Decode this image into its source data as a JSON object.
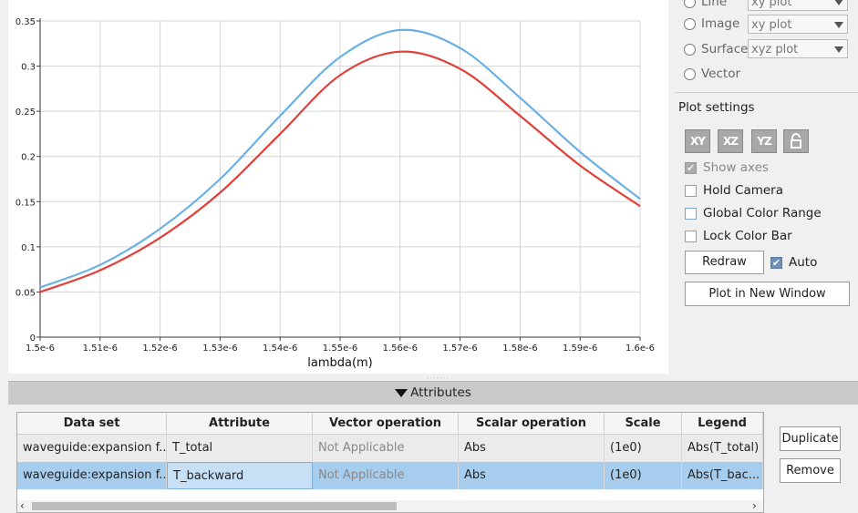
{
  "plot_types": [
    {
      "label": "Line",
      "combo": "xy plot"
    },
    {
      "label": "Image",
      "combo": "xy plot"
    },
    {
      "label": "Surface",
      "combo": "xyz plot"
    },
    {
      "label": "Vector"
    }
  ],
  "settings": {
    "title": "Plot settings",
    "icons": [
      {
        "label": "XY",
        "name": "view-xy-icon"
      },
      {
        "label": "XZ",
        "name": "view-xz-icon"
      },
      {
        "label": "YZ",
        "name": "view-yz-icon"
      },
      {
        "label": "",
        "name": "lock-icon"
      }
    ],
    "show_axes": "Show axes",
    "hold_camera": "Hold Camera",
    "global_color_range": "Global Color Range",
    "lock_color_bar": "Lock Color Bar",
    "redraw": "Redraw",
    "auto": "Auto",
    "plot_new_window": "Plot in New Window"
  },
  "attributes": {
    "header": "Attributes",
    "columns": [
      "Data set",
      "Attribute",
      "Vector operation",
      "Scalar operation",
      "Scale",
      "Legend"
    ],
    "rows": [
      [
        "waveguide:expansion f...",
        "T_total",
        "Not Applicable",
        "Abs",
        "(1e0)",
        "Abs(T_total)"
      ],
      [
        "waveguide:expansion f...",
        "T_backward",
        "Not Applicable",
        "Abs",
        "(1e0)",
        "Abs(T_bac..."
      ]
    ],
    "duplicate": "Duplicate",
    "remove": "Remove"
  },
  "chart_data": {
    "type": "line",
    "xlabel": "lambda(m)",
    "ylabel": "",
    "x_ticks": [
      "1.5e-6",
      "1.51e-6",
      "1.52e-6",
      "1.53e-6",
      "1.54e-6",
      "1.55e-6",
      "1.56e-6",
      "1.57e-6",
      "1.58e-6",
      "1.59e-6",
      "1.6e-6"
    ],
    "y_ticks": [
      "0",
      "0.05",
      "0.1",
      "0.15",
      "0.2",
      "0.25",
      "0.3",
      "0.35"
    ],
    "xlim": [
      1.5e-06,
      1.6e-06
    ],
    "ylim": [
      0,
      0.35
    ],
    "grid": true,
    "x": [
      1.5e-06,
      1.51e-06,
      1.52e-06,
      1.53e-06,
      1.54e-06,
      1.55e-06,
      1.56e-06,
      1.57e-06,
      1.58e-06,
      1.59e-06,
      1.6e-06
    ],
    "series": [
      {
        "color": "#6ab0e4",
        "values": [
          0.055,
          0.08,
          0.12,
          0.175,
          0.245,
          0.31,
          0.34,
          0.32,
          0.265,
          0.205,
          0.153
        ]
      },
      {
        "color": "#e0413a",
        "values": [
          0.05,
          0.074,
          0.11,
          0.16,
          0.225,
          0.29,
          0.316,
          0.297,
          0.245,
          0.19,
          0.145
        ]
      }
    ]
  }
}
